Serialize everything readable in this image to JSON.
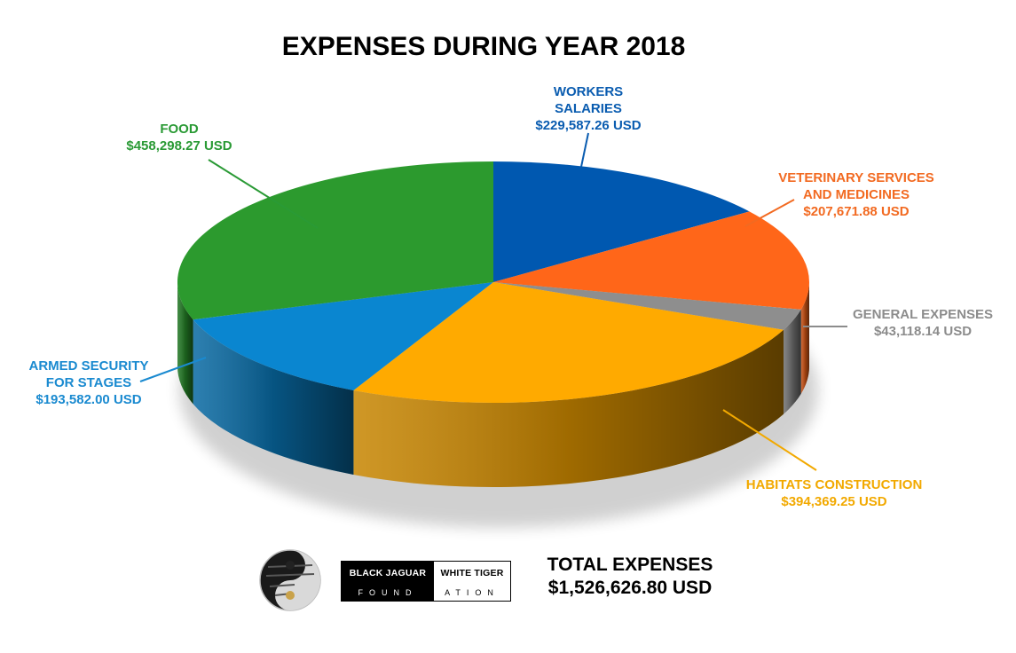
{
  "chart_data": {
    "type": "pie",
    "title": "EXPENSES DURING YEAR 2018",
    "slices": [
      {
        "label_lines": [
          "WORKERS",
          "SALARIES"
        ],
        "value_text": "$229,587.26 USD",
        "value": 229587.26,
        "color": "#0058b0",
        "label_color": "#0a5cb0"
      },
      {
        "label_lines": [
          "VETERINARY SERVICES",
          "AND MEDICINES"
        ],
        "value_text": "$207,671.88 USD",
        "value": 207671.88,
        "color": "#ff6619",
        "label_color": "#f26a21"
      },
      {
        "label_lines": [
          "GENERAL EXPENSES"
        ],
        "value_text": "$43,118.14 USD",
        "value": 43118.14,
        "color": "#8e8e8e",
        "label_color": "#8c8c8c"
      },
      {
        "label_lines": [
          "HABITATS CONSTRUCTION"
        ],
        "value_text": "$394,369.25 USD",
        "value": 394369.25,
        "color": "#ffaa00",
        "label_color": "#f2a900"
      },
      {
        "label_lines": [
          "ARMED SECURITY",
          "FOR STAGES"
        ],
        "value_text": "$193,582.00 USD",
        "value": 193582.0,
        "color": "#0a86d0",
        "label_color": "#1a8ad0"
      },
      {
        "label_lines": [
          "FOOD"
        ],
        "value_text": "$458,298.27 USD",
        "value": 458298.27,
        "color": "#2c9a2e",
        "label_color": "#2a9a35"
      }
    ]
  },
  "footer": {
    "total_label": "TOTAL EXPENSES",
    "total_value": "$1,526,626.80 USD",
    "brand_line1_left": "BLACK JAGUAR",
    "brand_line1_right": "WHITE TIGER",
    "brand_line2_left": "FOUND",
    "brand_line2_right": "ATION"
  }
}
